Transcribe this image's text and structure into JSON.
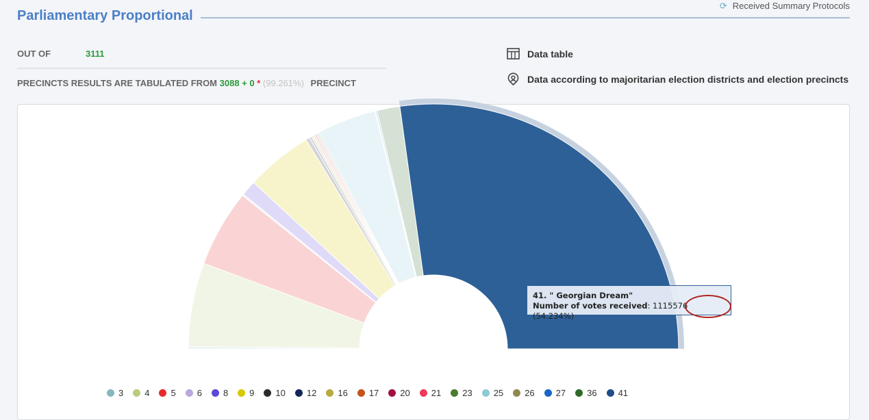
{
  "header": {
    "title": "Parliamentary Proportional",
    "top_link": "Received Summary Protocols"
  },
  "stats": {
    "out_of_label": "OUT OF",
    "out_of_value": "3111",
    "tabulated_label": "PRECINCTS RESULTS ARE TABULATED FROM",
    "tabulated_value": "3088 + 0",
    "asterisk": "*",
    "percent": "(99.261%)",
    "precinct_label": "PRECINCT"
  },
  "links": {
    "data_table": "Data table",
    "districts": "Data according to majoritarian election districts and election precincts"
  },
  "tooltip": {
    "title": "41. \" Georgian Dream\"",
    "label": "Number of votes received",
    "votes": "1115576",
    "percent": "(54.234%)"
  },
  "chart_data": {
    "type": "pie",
    "subtype": "semicircle-donut",
    "highlighted": "41",
    "series": [
      {
        "name": "3",
        "value": 0.3,
        "color": "#86b8bd"
      },
      {
        "name": "4",
        "value": 11.03,
        "color": "#b9cc7e"
      },
      {
        "name": "5",
        "value": 10.17,
        "color": "#e62a2a"
      },
      {
        "name": "6",
        "value": 0.2,
        "color": "#b9a9de"
      },
      {
        "name": "8",
        "value": 2.0,
        "color": "#5a48d6"
      },
      {
        "name": "9",
        "value": 8.81,
        "color": "#d9c900"
      },
      {
        "name": "10",
        "value": 0.5,
        "color": "#2a2a2a"
      },
      {
        "name": "12",
        "value": 0.3,
        "color": "#12265a"
      },
      {
        "name": "16",
        "value": 0.3,
        "color": "#b7aa3e"
      },
      {
        "name": "17",
        "value": 0.2,
        "color": "#c4541c"
      },
      {
        "name": "20",
        "value": 0.2,
        "color": "#a0103f"
      },
      {
        "name": "21",
        "value": 0.2,
        "color": "#f03a5a"
      },
      {
        "name": "23",
        "value": 0.2,
        "color": "#4a7a2e"
      },
      {
        "name": "25",
        "value": 7.78,
        "color": "#8ecad6"
      },
      {
        "name": "26",
        "value": 0.1,
        "color": "#8f8a4c"
      },
      {
        "name": "27",
        "value": 0.2,
        "color": "#1a66c8"
      },
      {
        "name": "36",
        "value": 3.0,
        "color": "#2f6a2a"
      },
      {
        "name": "41",
        "value": 54.234,
        "color": "#1f4e89"
      }
    ]
  }
}
